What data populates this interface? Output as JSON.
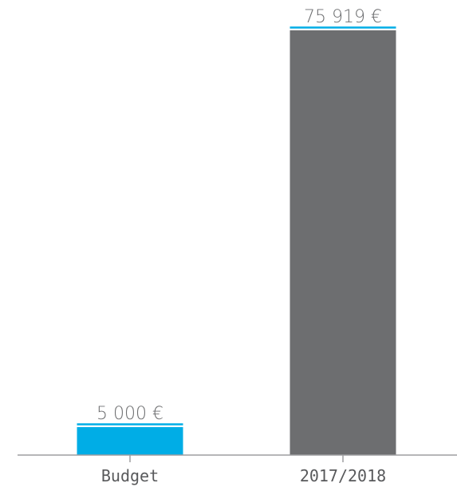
{
  "chart_data": {
    "type": "bar",
    "categories": [
      "Budget",
      "2017/2018"
    ],
    "values": [
      5000,
      75919
    ],
    "value_labels": [
      "5 000 €",
      "75 919 €"
    ],
    "unit": "€",
    "ylim": [
      0,
      75919
    ],
    "grid": false,
    "colors": {
      "bars": [
        "#00ade6",
        "#6d6e70"
      ],
      "cap_line": "#00ade6",
      "axis": "#9e9ea0",
      "value_text": "#6d6e70",
      "tick_text": "#58595b"
    }
  }
}
